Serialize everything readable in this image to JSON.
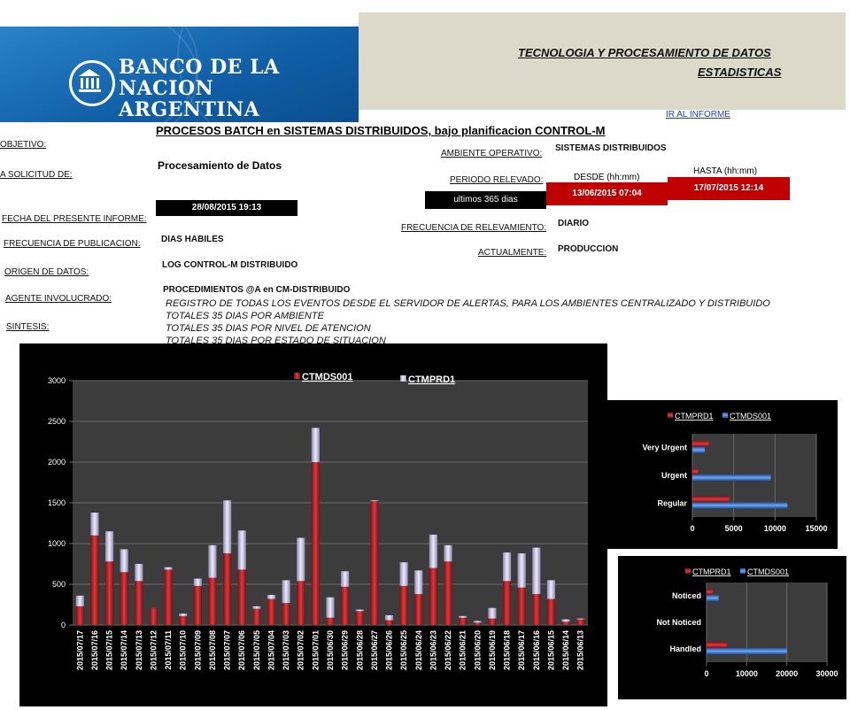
{
  "header": {
    "bank_name_line1": "BANCO DE LA",
    "bank_name_line2": "NACION ARGENTINA",
    "dept_title": "TECNOLOGIA Y PROCESAMIENTO DE DATOS",
    "dept_subtitle": "ESTADISTICAS"
  },
  "report": {
    "title": "PROCESOS BATCH en SISTEMAS DISTRIBUIDOS, bajo planificacion CONTROL-M",
    "link_label": "IR AL INFORME",
    "objetivo_label": "OBJETIVO:",
    "solicitud_label": "A SOLICITUD DE:",
    "solicitud_value": "Procesamiento de Datos",
    "fecha_label": "FECHA DEL PRESENTE INFORME:",
    "fecha_value": "28/08/2015 19:13",
    "frecuencia_pub_label": "FRECUENCIA DE PUBLICACION:",
    "frecuencia_pub_value": "DIAS HABILES",
    "origen_label": "ORIGEN DE DATOS:",
    "origen_value": "LOG CONTROL-M DISTRIBUIDO",
    "agente_label": "AGENTE INVOLUCRADO:",
    "agente_value": "PROCEDIMIENTOS @A en CM-DISTRIBUIDO",
    "sintesis_label": "SINTESIS:",
    "sintesis_lines": [
      "REGISTRO DE TODAS LOS EVENTOS DESDE EL SERVIDOR DE ALERTAS, PARA LOS AMBIENTES CENTRALIZADO Y DISTRIBUIDO",
      "TOTALES 35 DIAS POR AMBIENTE",
      "TOTALES 35 DIAS POR NIVEL DE ATENCION",
      "TOTALES 35 DIAS POR ESTADO DE SITUACION"
    ],
    "ambiente_label": "AMBIENTE OPERATIVO:",
    "ambiente_value": "SISTEMAS DISTRIBUIDOS",
    "periodo_label": "PERIODO RELEVADO:",
    "periodo_note": "ultimos 365 dias",
    "desde_label": "DESDE (hh:mm)",
    "hasta_label": "HASTA (hh:mm)",
    "desde_value": "13/06/2015 07:04",
    "hasta_value": "17/07/2015 12:14",
    "frecuencia_rel_label": "FRECUENCIA DE RELEVAMIENTO:",
    "frecuencia_rel_value": "DIARIO",
    "actualmente_label": "ACTUALMENTE:",
    "actualmente_value": "PRODUCCION"
  },
  "colors": {
    "red": "#c0282d",
    "lavender": "#c9c3e6",
    "blue": "#2f6fd1",
    "plot_bg": "#3c3c3c"
  },
  "chart_data": [
    {
      "type": "bar",
      "stacked": true,
      "title": "",
      "series": [
        {
          "name": "CTMDS001",
          "values": [
            230,
            1100,
            780,
            650,
            540,
            210,
            680,
            110,
            480,
            580,
            880,
            680,
            200,
            320,
            270,
            540,
            2000,
            90,
            470,
            170,
            1520,
            60,
            480,
            380,
            700,
            780,
            90,
            30,
            80,
            540,
            460,
            380,
            320,
            40,
            70
          ]
        },
        {
          "name": "CTMPRD1",
          "values": [
            130,
            280,
            370,
            280,
            210,
            0,
            30,
            30,
            90,
            400,
            650,
            480,
            30,
            50,
            280,
            530,
            420,
            250,
            190,
            20,
            10,
            60,
            290,
            290,
            410,
            200,
            20,
            20,
            130,
            350,
            420,
            570,
            230,
            30,
            10
          ]
        }
      ],
      "categories": [
        "2015/07/17",
        "2015/07/16",
        "2015/07/15",
        "2015/07/14",
        "2015/07/13",
        "2015/07/12",
        "2015/07/11",
        "2015/07/10",
        "2015/07/09",
        "2015/07/08",
        "2015/07/07",
        "2015/07/06",
        "2015/07/05",
        "2015/07/04",
        "2015/07/03",
        "2015/07/02",
        "2015/07/01",
        "2015/06/30",
        "2015/06/29",
        "2015/06/28",
        "2015/06/27",
        "2015/06/26",
        "2015/06/25",
        "2015/06/24",
        "2015/06/23",
        "2015/06/22",
        "2015/06/21",
        "2015/06/20",
        "2015/06/19",
        "2015/06/18",
        "2015/06/17",
        "2015/06/16",
        "2015/06/15",
        "2015/06/14",
        "2015/06/13"
      ],
      "yticks": [
        "0",
        "500",
        "1000",
        "1500",
        "2000",
        "2500",
        "3000"
      ],
      "ylim": [
        0,
        3000
      ]
    },
    {
      "type": "bar",
      "orientation": "horizontal",
      "series": [
        {
          "name": "CTMPRD1",
          "values": [
            4500,
            700,
            2000
          ]
        },
        {
          "name": "CTMDS001",
          "values": [
            11500,
            9500,
            1500
          ]
        }
      ],
      "categories": [
        "Regular",
        "Urgent",
        "Very Urgent"
      ],
      "xticks": [
        "0",
        "5000",
        "10000",
        "15000"
      ],
      "xlim": [
        0,
        15000
      ]
    },
    {
      "type": "bar",
      "orientation": "horizontal",
      "series": [
        {
          "name": "CTMPRD1",
          "values": [
            5000,
            0,
            1500
          ]
        },
        {
          "name": "CTMDS001",
          "values": [
            20000,
            0,
            3000
          ]
        }
      ],
      "categories": [
        "Handled",
        "Not Noticed",
        "Noticed"
      ],
      "xticks": [
        "0",
        "10000",
        "20000",
        "30000"
      ],
      "xlim": [
        0,
        30000
      ]
    }
  ]
}
